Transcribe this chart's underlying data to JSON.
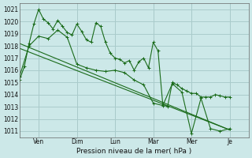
{
  "background_color": "#cce8e8",
  "grid_color": "#aacccc",
  "line_color": "#1a6b1a",
  "marker_color": "#1a6b1a",
  "xlabel_text": "Pression niveau de la mer( hPa )",
  "ylim": [
    1010.5,
    1021.5
  ],
  "yticks": [
    1011,
    1012,
    1013,
    1014,
    1015,
    1016,
    1017,
    1018,
    1019,
    1020,
    1021
  ],
  "x_day_labels": [
    "Ven",
    "Dim",
    "Lun",
    "Mar",
    "Mer",
    "Je"
  ],
  "x_day_positions": [
    24,
    72,
    120,
    168,
    216,
    264
  ],
  "xlim": [
    0,
    288
  ],
  "series": [
    {
      "x": [
        0,
        6,
        12,
        18,
        24,
        30,
        36,
        42,
        48,
        54,
        60,
        66,
        72,
        78,
        84,
        90,
        96,
        102,
        108,
        114,
        120,
        126,
        132,
        138,
        144,
        150,
        156,
        162,
        168,
        174,
        180,
        186,
        192,
        198,
        204,
        210,
        216,
        222,
        228,
        234,
        240,
        246,
        252,
        258,
        264
      ],
      "y": [
        1015.2,
        1016.3,
        1018.2,
        1019.8,
        1021.0,
        1020.2,
        1019.9,
        1019.4,
        1020.1,
        1019.6,
        1019.1,
        1018.9,
        1019.8,
        1019.2,
        1018.5,
        1018.3,
        1019.9,
        1019.6,
        1018.3,
        1017.4,
        1017.0,
        1016.9,
        1016.6,
        1016.8,
        1016.0,
        1016.7,
        1017.0,
        1016.2,
        1018.3,
        1017.6,
        1013.2,
        1013.0,
        1015.0,
        1014.8,
        1014.5,
        1014.3,
        1014.1,
        1014.1,
        1013.8,
        1013.8,
        1013.8,
        1014.0,
        1013.9,
        1013.8,
        1013.8
      ]
    },
    {
      "x": [
        0,
        264
      ],
      "y": [
        1018.2,
        1011.1
      ]
    },
    {
      "x": [
        0,
        264
      ],
      "y": [
        1017.8,
        1011.1
      ]
    },
    {
      "x": [
        0,
        12,
        24,
        36,
        48,
        60,
        72,
        84,
        96,
        108,
        120,
        132,
        144,
        156,
        168,
        180,
        192,
        204,
        216,
        228,
        240,
        252,
        264
      ],
      "y": [
        1015.5,
        1018.0,
        1018.8,
        1018.6,
        1019.3,
        1018.7,
        1016.5,
        1016.2,
        1016.0,
        1015.9,
        1016.0,
        1015.8,
        1015.2,
        1014.8,
        1013.3,
        1013.1,
        1014.9,
        1014.2,
        1010.8,
        1013.7,
        1011.2,
        1011.0,
        1011.2
      ]
    }
  ]
}
